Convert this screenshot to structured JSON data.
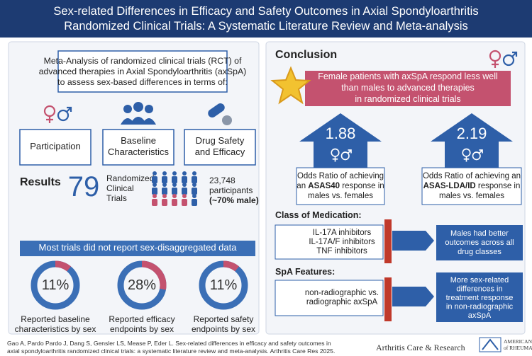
{
  "header": {
    "title_lines": [
      "Sex-related Differences in Efficacy and Safety Outcomes in Axial Spondyloarthritis",
      "Randomized Clinical Trials: A Systematic Literature Review and Meta-analysis"
    ]
  },
  "left": {
    "intro_lines": [
      "Meta-Analysis of randomized clinical trials (RCT) of",
      "advanced therapies in Axial Spondyloarthritis (axSpA)",
      "to assess sex-based differences in terms of:"
    ],
    "aspects": [
      {
        "lines": [
          "Participation"
        ]
      },
      {
        "lines": [
          "Baseline",
          "Characteristics"
        ]
      },
      {
        "lines": [
          "Drug Safety",
          "and Efficacy"
        ]
      }
    ],
    "results": {
      "heading": "Results",
      "trials_count": 79,
      "trials_lines": [
        "Randomized",
        "Clinical",
        "Trials"
      ],
      "participants_lines": [
        "23,748",
        "participants",
        {
          "text": "(~70% male)",
          "bold": true
        }
      ]
    },
    "banner": "Most trials did not report sex-disaggregated data",
    "donuts": [
      {
        "value": 11,
        "value_label": "11%",
        "caption_lines": [
          "Reported baseline",
          "characteristics by sex"
        ]
      },
      {
        "value": 28,
        "value_label": "28%",
        "caption_lines": [
          "Reported efficacy",
          "endpoints by sex"
        ]
      },
      {
        "value": 11,
        "value_label": "11%",
        "caption_lines": [
          "Reported safety",
          "endpoints by sex"
        ]
      }
    ]
  },
  "right": {
    "heading": "Conclusion",
    "statement_lines": [
      "Female patients with axSpA respond less well",
      "than males to advanced therapies",
      "in randomized clinical trials"
    ],
    "odds_ratios": [
      {
        "value": 1.88,
        "lines": [
          "Odds Ratio of achieving",
          [
            {
              "text": "an "
            },
            {
              "text": "ASAS40",
              "bold": true
            },
            {
              "text": " response in"
            }
          ],
          "males vs. females"
        ]
      },
      {
        "value": 2.19,
        "lines": [
          "Odds Ratio of achieving an",
          [
            {
              "text": "ASAS-LDA/ID",
              "bold": true
            },
            {
              "text": " response in"
            }
          ],
          "males vs. females"
        ]
      }
    ],
    "sections": [
      {
        "heading": "Class of Medication:",
        "items_lines": [
          "IL-17A inhibitors",
          "IL-17A/F inhibitors",
          "TNF inhibitors"
        ],
        "finding_lines": [
          "Males had better",
          "outcomes across all",
          "drug classes"
        ]
      },
      {
        "heading": "SpA Features:",
        "items_lines": [
          "non-radiographic vs.",
          "radiographic axSpA"
        ],
        "finding_lines": [
          "More sex-related",
          "differences in",
          "treatment response",
          "in non-radiographic",
          "axSpA"
        ]
      }
    ]
  },
  "footer": {
    "citation_lines": [
      "Gao A, Pardo Pardo J, Dang S, Gensler LS, Mease P, Eder L. Sex-related differences in efficacy and safety outcomes in",
      "axial spondyloarthritis randomized clinical trials: a systematic literature review and meta-analysis. Arthritis Care Res 2025."
    ],
    "journal": "Arthritis Care & Research",
    "society_lines": [
      "AMERICAN COLLEGE",
      "of RHEUMATOLOGY"
    ]
  }
}
